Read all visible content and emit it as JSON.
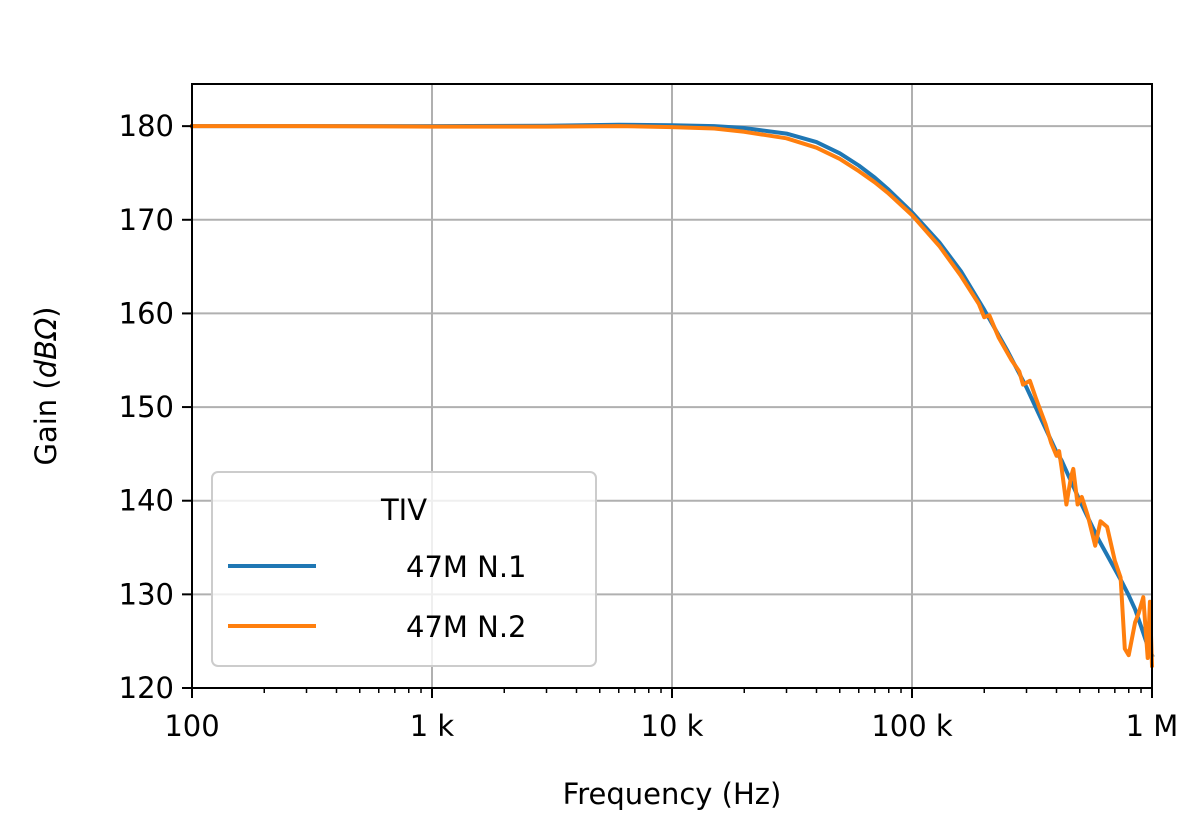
{
  "chart_data": {
    "type": "line",
    "xlabel": "Frequency (Hz)",
    "ylabel_parts": [
      "Gain (",
      "dBΩ",
      ")"
    ],
    "x_scale": "log",
    "xlim": [
      100,
      1000000
    ],
    "ylim": [
      120,
      184.5
    ],
    "grid": true,
    "x_ticks": [
      {
        "value": 100,
        "label": "100"
      },
      {
        "value": 1000,
        "label": "1 k"
      },
      {
        "value": 10000,
        "label": "10 k"
      },
      {
        "value": 100000,
        "label": "100 k"
      },
      {
        "value": 1000000,
        "label": "1 M"
      }
    ],
    "y_ticks": [
      {
        "value": 120,
        "label": "120"
      },
      {
        "value": 130,
        "label": "130"
      },
      {
        "value": 140,
        "label": "140"
      },
      {
        "value": 150,
        "label": "150"
      },
      {
        "value": 160,
        "label": "160"
      },
      {
        "value": 170,
        "label": "170"
      },
      {
        "value": 180,
        "label": "180"
      }
    ],
    "legend": {
      "title": "TIV",
      "placement": "lower-left"
    },
    "series": [
      {
        "name": "47M N.1",
        "color": "#1f77b4",
        "points": [
          [
            100,
            180.0
          ],
          [
            300,
            180.0
          ],
          [
            1000,
            180.0
          ],
          [
            3000,
            180.05
          ],
          [
            6000,
            180.15
          ],
          [
            10000,
            180.1
          ],
          [
            15000,
            180.0
          ],
          [
            20000,
            179.8
          ],
          [
            30000,
            179.2
          ],
          [
            40000,
            178.3
          ],
          [
            50000,
            177.1
          ],
          [
            60000,
            175.8
          ],
          [
            70000,
            174.5
          ],
          [
            80000,
            173.2
          ],
          [
            100000,
            170.8
          ],
          [
            130000,
            167.6
          ],
          [
            160000,
            164.5
          ],
          [
            200000,
            160.4
          ],
          [
            250000,
            156.0
          ],
          [
            300000,
            152.1
          ],
          [
            350000,
            148.4
          ],
          [
            400000,
            145.2
          ],
          [
            420000,
            144.3
          ],
          [
            450000,
            142.6
          ],
          [
            500000,
            140.0
          ],
          [
            550000,
            137.8
          ],
          [
            600000,
            135.8
          ],
          [
            650000,
            134.2
          ],
          [
            700000,
            132.7
          ],
          [
            750000,
            131.3
          ],
          [
            800000,
            129.9
          ],
          [
            850000,
            128.4
          ],
          [
            900000,
            126.6
          ],
          [
            950000,
            124.8
          ],
          [
            1000000,
            123.5
          ]
        ]
      },
      {
        "name": "47M N.2",
        "color": "#ff7f0e",
        "points": [
          [
            100,
            180.0
          ],
          [
            300,
            180.0
          ],
          [
            1000,
            179.95
          ],
          [
            3000,
            179.95
          ],
          [
            6000,
            180.0
          ],
          [
            10000,
            179.9
          ],
          [
            15000,
            179.75
          ],
          [
            20000,
            179.4
          ],
          [
            30000,
            178.7
          ],
          [
            40000,
            177.7
          ],
          [
            50000,
            176.5
          ],
          [
            60000,
            175.2
          ],
          [
            70000,
            174.0
          ],
          [
            80000,
            172.8
          ],
          [
            100000,
            170.5
          ],
          [
            130000,
            167.2
          ],
          [
            160000,
            164.0
          ],
          [
            190000,
            161.0
          ],
          [
            200000,
            159.6
          ],
          [
            210000,
            159.8
          ],
          [
            230000,
            157.4
          ],
          [
            260000,
            155.0
          ],
          [
            280000,
            153.8
          ],
          [
            290000,
            152.4
          ],
          [
            310000,
            152.8
          ],
          [
            330000,
            150.8
          ],
          [
            360000,
            148.2
          ],
          [
            380000,
            146.2
          ],
          [
            400000,
            144.8
          ],
          [
            410000,
            145.3
          ],
          [
            420000,
            143.5
          ],
          [
            440000,
            139.6
          ],
          [
            460000,
            142.6
          ],
          [
            470000,
            143.4
          ],
          [
            490000,
            139.6
          ],
          [
            510000,
            140.4
          ],
          [
            540000,
            138.4
          ],
          [
            580000,
            135.2
          ],
          [
            610000,
            137.8
          ],
          [
            650000,
            137.2
          ],
          [
            700000,
            133.6
          ],
          [
            740000,
            131.8
          ],
          [
            770000,
            124.2
          ],
          [
            800000,
            123.5
          ],
          [
            850000,
            127.0
          ],
          [
            880000,
            128.0
          ],
          [
            920000,
            129.7
          ],
          [
            960000,
            123.2
          ],
          [
            980000,
            129.2
          ],
          [
            1000000,
            122.4
          ]
        ]
      }
    ]
  }
}
